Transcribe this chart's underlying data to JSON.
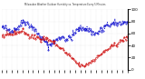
{
  "title": "Milwaukee Weather Outdoor Humidity vs. Temperature Every 5 Minutes",
  "background_color": "#ffffff",
  "grid_color": "#cccccc",
  "blue_color": "#0000cc",
  "red_color": "#cc0000",
  "ylim_left": [
    0,
    100
  ],
  "ylim_right": [
    -20,
    100
  ],
  "n_points": 200,
  "blue_seed": 42,
  "red_seed": 99
}
